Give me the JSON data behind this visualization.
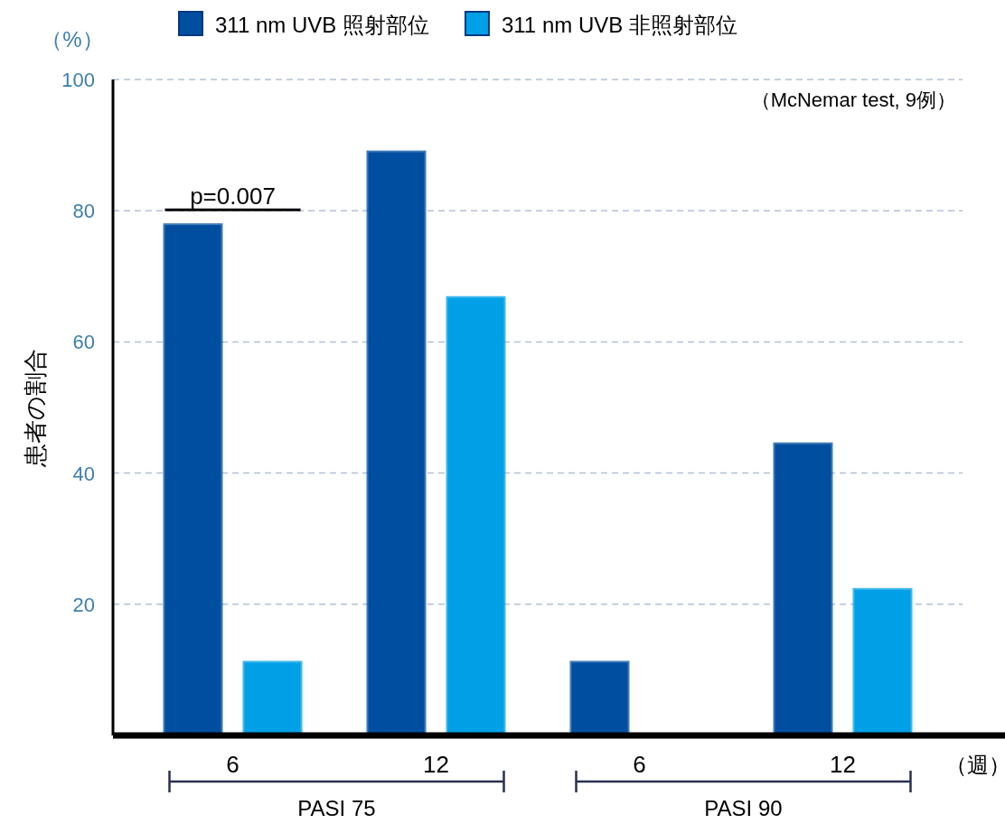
{
  "chart_data": {
    "type": "bar",
    "categories": [
      "6",
      "12",
      "6",
      "12"
    ],
    "series": [
      {
        "name": "311 nm UVB 照射部位",
        "color": "#004ea0",
        "values": [
          77.8,
          88.9,
          11.1,
          44.4
        ]
      },
      {
        "name": "311 nm UVB 非照射部位",
        "color": "#00a0e6",
        "values": [
          11.1,
          66.7,
          0,
          22.2
        ]
      }
    ],
    "xlabel": "（週）",
    "ylabel": "患者の割合",
    "annotations": [
      "（%）",
      "（McNemar test, 9例）",
      "p=0.007",
      "PASI 75",
      "PASI 90"
    ],
    "ylim": [
      0,
      100
    ],
    "yticks": [
      20,
      40,
      60,
      80,
      100
    ],
    "grid": "y",
    "legend": "top"
  }
}
